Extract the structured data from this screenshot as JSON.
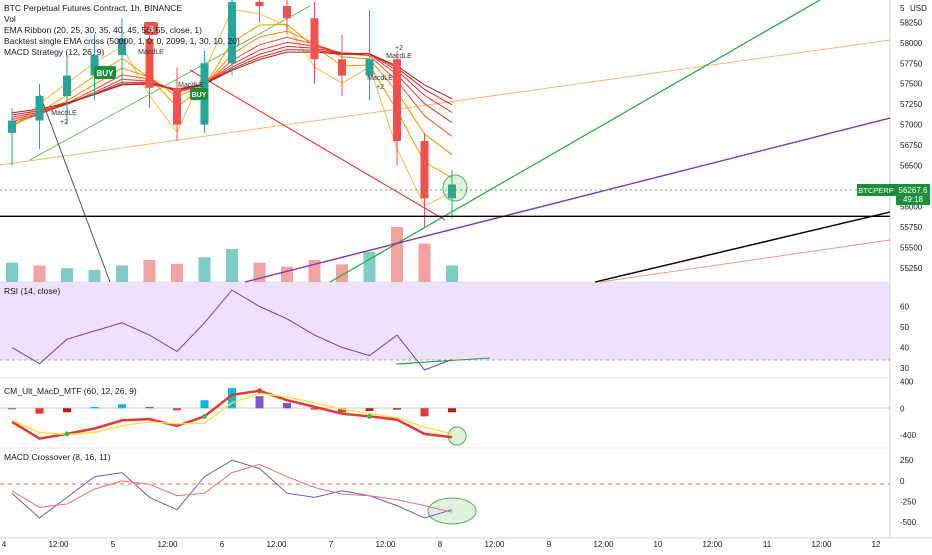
{
  "header": {
    "symbol_line": "BTC Perpetual Futures Contract, 1h, BINANCE",
    "vol": "Vol",
    "ema_ribbon": "EMA Ribbon (20, 25, 30, 35, 40, 45, 50, 55, close, 1)",
    "backtest": "Backtest single EMA cross (50000, 1, 0, 0, 2099, 1, 30, 10, 20)",
    "macd_strategy": "MACD Strategy (12, 26, 9)"
  },
  "price_axis": {
    "currency": "USD",
    "top_value": "5",
    "ticks": [
      "58250",
      "58000",
      "57750",
      "57500",
      "57250",
      "57000",
      "56750",
      "56500",
      "56000",
      "55750",
      "55500",
      "55250"
    ],
    "badge_symbol": "BTCPERP",
    "badge_price": "56267.6",
    "badge_countdown": "49:18"
  },
  "signals": {
    "buy_label": "BUY",
    "macdle_label": "MacdLE",
    "plus_two": "+2",
    "sell_prefix": "S"
  },
  "rsi": {
    "title": "RSI (14, close)",
    "ticks": [
      "60",
      "50",
      "40",
      "30"
    ]
  },
  "cm_macd": {
    "title": "CM_Ult_MacD_MTF (60, 12, 26, 9)",
    "ticks": [
      "400",
      "0",
      "-400"
    ]
  },
  "macd_cross": {
    "title": "MACD Crossover (8, 16, 11)",
    "ticks": [
      "250",
      "0",
      "-250",
      "-500"
    ]
  },
  "time_axis": {
    "labels": [
      "4",
      "12:00",
      "5",
      "12:00",
      "6",
      "12:00",
      "7",
      "12:00",
      "8",
      "12:00",
      "9",
      "12:00",
      "10",
      "12:00",
      "11",
      "12:00",
      "12"
    ]
  },
  "colors": {
    "up": "#26a69a",
    "down": "#ef5350",
    "volume_up": "#80cbc4",
    "volume_down": "#f4a3a0",
    "rsi_line": "#7b3f9e",
    "rsi_band": "#efe0fb",
    "buy_signal": "#1b8e3a",
    "badge": "#1b8e3a",
    "green_trend": "#27a23c",
    "purple_trend": "#7b35b3",
    "orange_trend": "#f5b461",
    "red_trend": "#e53935",
    "support": "#000000"
  },
  "chart_data": [
    {
      "type": "candlestick",
      "title": "BTC Perpetual Futures Contract, 1h, BINANCE",
      "x_range": [
        "4",
        "12"
      ],
      "ylim": [
        55150,
        58450
      ],
      "last_price": 56267.6,
      "support_level": 55880,
      "candles": [
        {
          "time": "4 00:00",
          "open": 56900,
          "high": 57200,
          "low": 56500,
          "close": 57050
        },
        {
          "time": "4 06:00",
          "open": 57050,
          "high": 57500,
          "low": 56700,
          "close": 57350
        },
        {
          "time": "4 12:00",
          "open": 57350,
          "high": 57850,
          "low": 57000,
          "close": 57600
        },
        {
          "time": "4 18:00",
          "open": 57600,
          "high": 58100,
          "low": 57300,
          "close": 57850
        },
        {
          "time": "5 00:00",
          "open": 57850,
          "high": 58300,
          "low": 57500,
          "close": 58050
        },
        {
          "time": "5 06:00",
          "open": 58050,
          "high": 58200,
          "low": 57200,
          "close": 57450
        },
        {
          "time": "5 12:00",
          "open": 57450,
          "high": 57700,
          "low": 56800,
          "close": 57000
        },
        {
          "time": "5 18:00",
          "open": 57000,
          "high": 57900,
          "low": 56900,
          "close": 57750
        },
        {
          "time": "6 00:00",
          "open": 57750,
          "high": 58700,
          "low": 57600,
          "close": 58500
        },
        {
          "time": "6 06:00",
          "open": 58500,
          "high": 58800,
          "low": 58250,
          "close": 58450
        },
        {
          "time": "6 12:00",
          "open": 58450,
          "high": 58700,
          "low": 58100,
          "close": 58300
        },
        {
          "time": "6 18:00",
          "open": 58300,
          "high": 58500,
          "low": 57500,
          "close": 57800
        },
        {
          "time": "7 00:00",
          "open": 57800,
          "high": 58100,
          "low": 57350,
          "close": 57600
        },
        {
          "time": "7 06:00",
          "open": 57600,
          "high": 58400,
          "low": 57300,
          "close": 57800
        },
        {
          "time": "7 12:00",
          "open": 57800,
          "high": 57900,
          "low": 56500,
          "close": 56800
        },
        {
          "time": "7 18:00",
          "open": 56800,
          "high": 56900,
          "low": 55750,
          "close": 56100
        },
        {
          "time": "8 00:00",
          "open": 56100,
          "high": 56450,
          "low": 55850,
          "close": 56268
        }
      ]
    },
    {
      "type": "bar",
      "title": "Vol",
      "categories": [
        "4 00:00",
        "4 06:00",
        "4 12:00",
        "4 18:00",
        "5 00:00",
        "5 06:00",
        "5 12:00",
        "5 18:00",
        "6 00:00",
        "6 06:00",
        "6 12:00",
        "6 18:00",
        "7 00:00",
        "7 06:00",
        "7 12:00",
        "7 18:00",
        "8 00:00"
      ],
      "values": [
        0.35,
        0.3,
        0.25,
        0.22,
        0.3,
        0.4,
        0.33,
        0.45,
        0.6,
        0.35,
        0.28,
        0.4,
        0.32,
        0.55,
        1.0,
        0.7,
        0.3
      ],
      "direction": [
        "up",
        "down",
        "up",
        "up",
        "up",
        "down",
        "down",
        "up",
        "up",
        "down",
        "down",
        "down",
        "down",
        "up",
        "down",
        "down",
        "up"
      ]
    },
    {
      "type": "line",
      "title": "RSI (14, close)",
      "ylim": [
        26,
        71
      ],
      "x": [
        "4 00:00",
        "4 06:00",
        "4 12:00",
        "4 18:00",
        "5 00:00",
        "5 06:00",
        "5 12:00",
        "5 18:00",
        "6 00:00",
        "6 06:00",
        "6 12:00",
        "6 18:00",
        "7 00:00",
        "7 06:00",
        "7 12:00",
        "7 18:00",
        "8 00:00"
      ],
      "series": [
        {
          "values": [
            40,
            32,
            44,
            48,
            52,
            46,
            38,
            52,
            68,
            60,
            54,
            46,
            40,
            36,
            46,
            29,
            34
          ]
        }
      ]
    },
    {
      "type": "bar",
      "title": "CM_Ult_MacD_MTF (60, 12, 26, 9)",
      "ylim": [
        -560,
        420
      ],
      "x": [
        "4 00:00",
        "4 06:00",
        "4 12:00",
        "4 18:00",
        "5 00:00",
        "5 06:00",
        "5 12:00",
        "5 18:00",
        "6 00:00",
        "6 06:00",
        "6 12:00",
        "6 18:00",
        "7 00:00",
        "7 06:00",
        "7 12:00",
        "7 18:00",
        "8 00:00"
      ],
      "series": [
        {
          "values": [
            -10,
            -80,
            -60,
            20,
            60,
            20,
            -30,
            120,
            300,
            180,
            80,
            -20,
            -60,
            -40,
            -20,
            -120,
            -60
          ]
        },
        {
          "values": [
            -200,
            -450,
            -380,
            -300,
            -180,
            -160,
            -260,
            -120,
            200,
            260,
            120,
            20,
            -80,
            -120,
            -170,
            -380,
            -430
          ]
        },
        {
          "values": [
            -180,
            -360,
            -390,
            -360,
            -260,
            -200,
            -230,
            -220,
            80,
            220,
            170,
            80,
            -10,
            -80,
            -140,
            -280,
            -380
          ]
        }
      ]
    },
    {
      "type": "line",
      "title": "MACD Crossover (8, 16, 11)",
      "ylim": [
        -620,
        350
      ],
      "x": [
        "4 00:00",
        "4 06:00",
        "4 12:00",
        "4 18:00",
        "5 00:00",
        "5 06:00",
        "5 12:00",
        "5 18:00",
        "6 00:00",
        "6 06:00",
        "6 12:00",
        "6 18:00",
        "7 00:00",
        "7 06:00",
        "7 12:00",
        "7 18:00",
        "8 00:00"
      ],
      "series": [
        {
          "values": [
            -150,
            -450,
            -200,
            50,
            100,
            -200,
            -350,
            50,
            250,
            150,
            -150,
            -200,
            -120,
            -180,
            -300,
            -450,
            -350
          ]
        },
        {
          "values": [
            -120,
            -320,
            -280,
            -100,
            0,
            -40,
            -180,
            -150,
            100,
            200,
            50,
            -80,
            -160,
            -180,
            -230,
            -300,
            -380
          ]
        }
      ]
    }
  ]
}
